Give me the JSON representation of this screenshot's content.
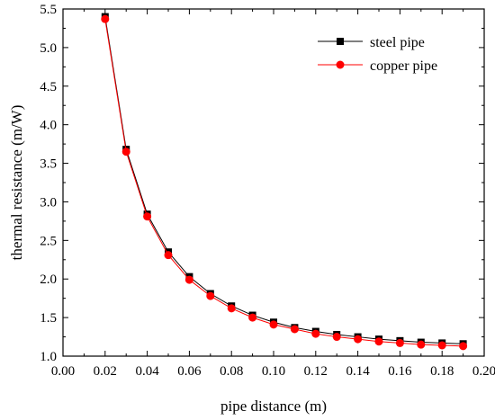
{
  "chart_data": {
    "type": "line",
    "title": "",
    "xlabel": "pipe distance (m)",
    "ylabel": "thermal resistance (m/W)",
    "xlim": [
      0.0,
      0.2
    ],
    "ylim": [
      1.0,
      5.5
    ],
    "x_ticks": [
      "0.00",
      "0.02",
      "0.04",
      "0.06",
      "0.08",
      "0.10",
      "0.12",
      "0.14",
      "0.16",
      "0.18",
      "0.20"
    ],
    "y_ticks": [
      "1.0",
      "1.5",
      "2.0",
      "2.5",
      "3.0",
      "3.5",
      "4.0",
      "4.5",
      "5.0",
      "5.5"
    ],
    "grid": false,
    "legend_position": "top-right",
    "x": [
      0.02,
      0.03,
      0.04,
      0.05,
      0.06,
      0.07,
      0.08,
      0.09,
      0.1,
      0.11,
      0.12,
      0.13,
      0.14,
      0.15,
      0.16,
      0.17,
      0.18,
      0.19
    ],
    "series": [
      {
        "name": "steel pipe",
        "color": "#000000",
        "marker": "square",
        "values": [
          5.4,
          3.68,
          2.84,
          2.35,
          2.03,
          1.81,
          1.65,
          1.53,
          1.44,
          1.37,
          1.32,
          1.28,
          1.25,
          1.22,
          1.2,
          1.18,
          1.17,
          1.16
        ]
      },
      {
        "name": "copper pipe",
        "color": "#ff0000",
        "marker": "circle",
        "values": [
          5.37,
          3.65,
          2.81,
          2.31,
          1.99,
          1.78,
          1.62,
          1.5,
          1.41,
          1.35,
          1.29,
          1.25,
          1.22,
          1.19,
          1.17,
          1.15,
          1.14,
          1.13
        ]
      }
    ]
  }
}
